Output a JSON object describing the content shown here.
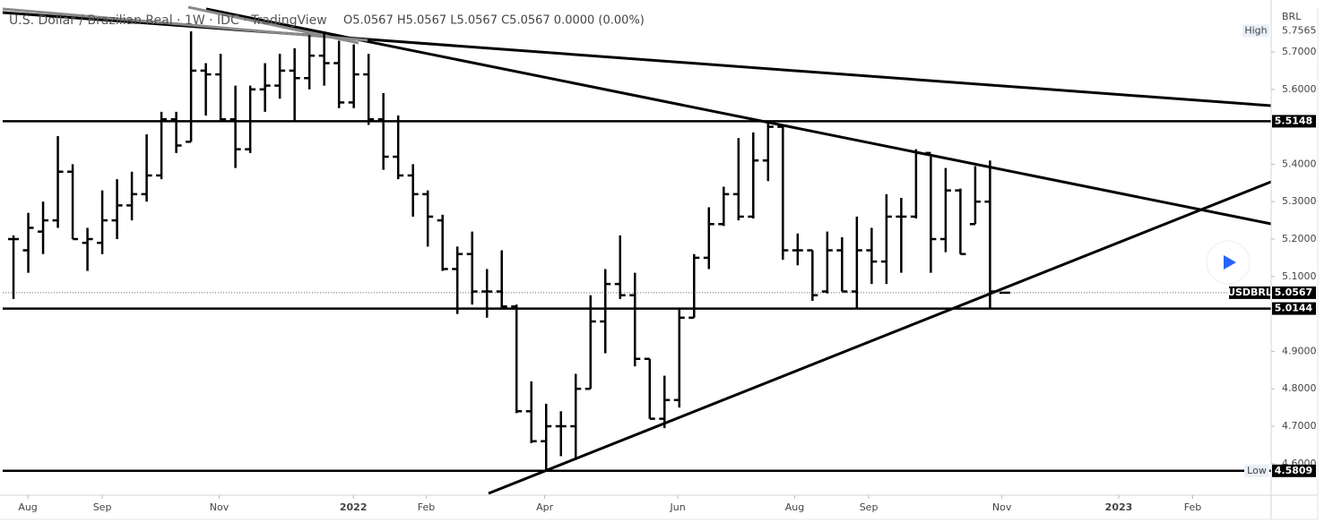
{
  "chart_data": {
    "type": "ohlc",
    "title": "U.S. Dollar / Brazilian Real · 1W · IDC · TradingView",
    "readout": "O5.0567 H5.0567 L5.0567 C5.0567 0.0000 (0.00%)",
    "currency": "BRL",
    "color": "#000000",
    "x": [
      0,
      1,
      2,
      3,
      4,
      5,
      6,
      7,
      8,
      9,
      10,
      11,
      12,
      13,
      14,
      15,
      16,
      17,
      18,
      19,
      20,
      21,
      22,
      23,
      24,
      25,
      26,
      27,
      28,
      29,
      30,
      31,
      32,
      33,
      34,
      35,
      36,
      37,
      38,
      39,
      40,
      41,
      42,
      43,
      44,
      45,
      46,
      47,
      48,
      49,
      50,
      51,
      52,
      53,
      54,
      55,
      56,
      57,
      58,
      59,
      60,
      61,
      62,
      63,
      64,
      65,
      66,
      67
    ],
    "open": [
      5.2,
      5.17,
      5.22,
      5.25,
      5.38,
      5.19,
      5.19,
      5.25,
      5.29,
      5.32,
      5.37,
      5.52,
      5.46,
      5.65,
      5.64,
      5.52,
      5.44,
      5.6,
      5.61,
      5.65,
      5.63,
      5.69,
      5.67,
      5.565,
      5.64,
      5.52,
      5.42,
      5.37,
      5.32,
      5.25,
      5.12,
      5.16,
      5.06,
      5.06,
      5.02,
      4.74,
      4.66,
      4.7,
      4.7,
      4.8,
      4.98,
      5.08,
      5.05,
      4.88,
      4.72,
      4.77,
      4.99,
      5.15,
      5.24,
      5.32,
      5.26,
      5.41,
      5.5,
      5.17,
      5.17,
      5.06,
      5.17,
      5.06,
      5.17,
      5.14,
      5.26,
      5.26,
      5.43,
      5.2,
      5.33,
      5.24,
      5.3,
      5.0567
    ],
    "high": [
      5.21,
      5.27,
      5.3,
      5.475,
      5.4,
      5.23,
      5.33,
      5.36,
      5.38,
      5.48,
      5.54,
      5.54,
      5.755,
      5.67,
      5.695,
      5.61,
      5.61,
      5.67,
      5.695,
      5.71,
      5.745,
      5.755,
      5.73,
      5.72,
      5.695,
      5.59,
      5.53,
      5.4,
      5.33,
      5.265,
      5.18,
      5.22,
      5.12,
      5.17,
      5.025,
      4.82,
      4.76,
      4.74,
      4.84,
      5.05,
      5.12,
      5.21,
      5.11,
      4.88,
      4.835,
      5.015,
      5.16,
      5.285,
      5.34,
      5.47,
      5.485,
      5.51,
      5.505,
      5.215,
      5.17,
      5.22,
      5.205,
      5.26,
      5.23,
      5.32,
      5.31,
      5.44,
      5.42,
      5.39,
      5.335,
      5.395,
      5.41,
      5.0567
    ],
    "low": [
      5.04,
      5.11,
      5.16,
      5.23,
      5.2,
      5.115,
      5.16,
      5.2,
      5.25,
      5.3,
      5.36,
      5.43,
      5.46,
      5.53,
      5.515,
      5.39,
      5.43,
      5.54,
      5.575,
      5.515,
      5.6,
      5.61,
      5.55,
      5.55,
      5.505,
      5.385,
      5.36,
      5.26,
      5.18,
      5.115,
      5.0,
      5.025,
      4.99,
      5.015,
      4.735,
      4.655,
      4.5809,
      4.62,
      4.61,
      4.8,
      4.895,
      5.04,
      4.86,
      4.72,
      4.695,
      4.75,
      4.99,
      5.12,
      5.235,
      5.25,
      5.255,
      5.355,
      5.145,
      5.13,
      5.035,
      5.055,
      5.06,
      5.015,
      5.08,
      5.08,
      5.11,
      5.255,
      5.11,
      5.165,
      5.16,
      5.24,
      5.015,
      5.0567
    ],
    "close": [
      5.2,
      5.23,
      5.25,
      5.38,
      5.2,
      5.2,
      5.25,
      5.29,
      5.32,
      5.37,
      5.52,
      5.45,
      5.65,
      5.64,
      5.52,
      5.44,
      5.6,
      5.61,
      5.65,
      5.63,
      5.69,
      5.67,
      5.565,
      5.64,
      5.52,
      5.42,
      5.37,
      5.32,
      5.26,
      5.12,
      5.16,
      5.06,
      5.06,
      5.02,
      4.74,
      4.66,
      4.7,
      4.7,
      4.8,
      4.98,
      5.08,
      5.05,
      4.88,
      4.72,
      4.77,
      4.99,
      5.15,
      5.24,
      5.32,
      5.26,
      5.41,
      5.5,
      5.17,
      5.17,
      5.05,
      5.17,
      5.06,
      5.17,
      5.14,
      5.26,
      5.26,
      5.43,
      5.2,
      5.33,
      5.16,
      5.3,
      5.06,
      5.0567
    ],
    "xlim": [
      -0.73,
      85.0
    ],
    "xticks": [
      {
        "value": 0.97,
        "label": "Aug"
      },
      {
        "value": 6.0,
        "label": "Sep"
      },
      {
        "value": 13.9,
        "label": "Nov"
      },
      {
        "value": 22.97,
        "label": "2022"
      },
      {
        "value": 27.9,
        "label": "Feb"
      },
      {
        "value": 35.9,
        "label": "Apr"
      },
      {
        "value": 44.9,
        "label": "Jun"
      },
      {
        "value": 52.8,
        "label": "Aug"
      },
      {
        "value": 57.8,
        "label": "Sep"
      },
      {
        "value": 66.8,
        "label": "Nov"
      },
      {
        "value": 74.7,
        "label": "2023"
      },
      {
        "value": 79.7,
        "label": "Feb"
      }
    ],
    "ylim": [
      4.5158,
      5.8196
    ],
    "yticks": [
      {
        "value": 5.7,
        "label": "5.7000"
      },
      {
        "value": 5.6,
        "label": "5.6000"
      },
      {
        "value": 5.4,
        "label": "5.4000"
      },
      {
        "value": 5.3,
        "label": "5.3000"
      },
      {
        "value": 5.2,
        "label": "5.2000"
      },
      {
        "value": 5.1,
        "label": "5.1000"
      },
      {
        "value": 4.9,
        "label": "4.9000"
      },
      {
        "value": 4.8,
        "label": "4.8000"
      },
      {
        "value": 4.7,
        "label": "4.7000"
      },
      {
        "value": 4.6,
        "label": "4.6000"
      }
    ],
    "levels": [
      5.5148,
      5.0144
    ],
    "high_marker": {
      "label": "High",
      "value": 5.7565
    },
    "low_marker": {
      "label": "Low",
      "value": 4.5809
    },
    "last_price": {
      "label": "USDBRL",
      "value": 5.0567
    }
  }
}
